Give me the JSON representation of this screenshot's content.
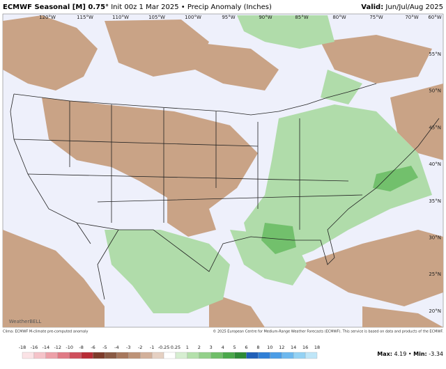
{
  "header": {
    "title": "ECMWF Seasonal [M] 0.75°",
    "subtitle": "Init 00z 1 Mar 2025 • Precip Anomaly (Inches)",
    "valid_label": "Valid:",
    "valid": "Jun/Jul/Aug 2025"
  },
  "map": {
    "lon_labels": [
      "120°W",
      "115°W",
      "110°W",
      "105°W",
      "100°W",
      "95°W",
      "90°W",
      "85°W",
      "80°W",
      "75°W",
      "70°W",
      "60°W"
    ],
    "lat_labels": [
      "55°N",
      "50°N",
      "45°N",
      "40°N",
      "35°N",
      "30°N",
      "25°N",
      "20°N"
    ],
    "logo": "WeatherBELL"
  },
  "footer": {
    "left": "Clima: ECMWF M-climate pre-computed anomaly",
    "right": "© 2025 European Centre for Medium-Range Weather Forecasts (ECMWF). This service is based on data and products of the ECMWF."
  },
  "colorbar": {
    "labels": [
      -18,
      -16,
      -14,
      -12,
      -10,
      -8,
      -6,
      -5,
      -4,
      -3,
      -2,
      -1,
      -0.25,
      0.25,
      1,
      2,
      3,
      4,
      5,
      6,
      8,
      10,
      12,
      14,
      16,
      18
    ],
    "colors": [
      "#fbe3e6",
      "#f5c3c9",
      "#eda0a8",
      "#e07a85",
      "#cf4f5c",
      "#b82c35",
      "#7d3b2a",
      "#8a5a44",
      "#a7785d",
      "#bd9378",
      "#d2b09a",
      "#e5d0c2",
      "#ffffff",
      "#d6eed1",
      "#b4e0ab",
      "#93d08a",
      "#6fbe68",
      "#4aa84a",
      "#2d8a36",
      "#1f5fb8",
      "#2f7fd6",
      "#4b9de6",
      "#6db8ee",
      "#94d2f4",
      "#bfe6f8"
    ]
  },
  "stats": {
    "max_label": "Max:",
    "max": 4.19,
    "sep": "•",
    "min_label": "Min:",
    "min": -3.34
  }
}
